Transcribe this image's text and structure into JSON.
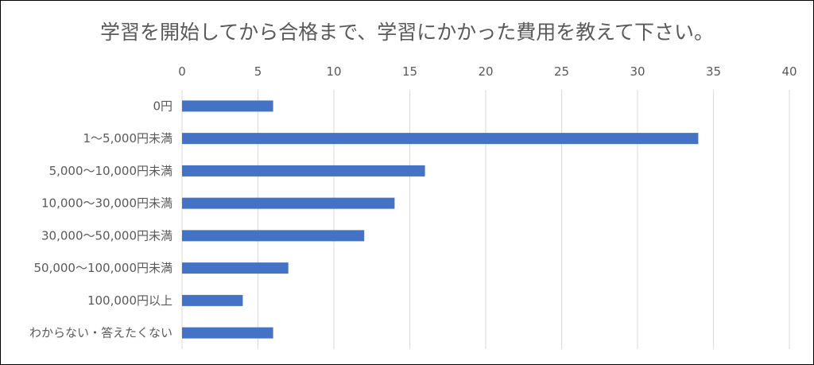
{
  "chart_data": {
    "type": "bar",
    "orientation": "horizontal",
    "title": "学習を開始してから合格まで、学習にかかった費用を教えて下さい。",
    "categories": [
      "0円",
      "1～5,000円未満",
      "5,000～10,000円未満",
      "10,000～30,000円未満",
      "30,000～50,000円未満",
      "50,000～100,000円未満",
      "100,000円以上",
      "わからない・答えたくない"
    ],
    "values": [
      6,
      34,
      16,
      14,
      12,
      7,
      4,
      6
    ],
    "xlim": [
      0,
      40
    ],
    "xticks": [
      0,
      5,
      10,
      15,
      20,
      25,
      30,
      35,
      40
    ],
    "xlabel": "",
    "ylabel": "",
    "grid": "vertical",
    "axis_position": "top",
    "legend": "none",
    "colors": {
      "bar": "#4472C4",
      "grid": "#D9D9D9",
      "text": "#595959"
    }
  }
}
